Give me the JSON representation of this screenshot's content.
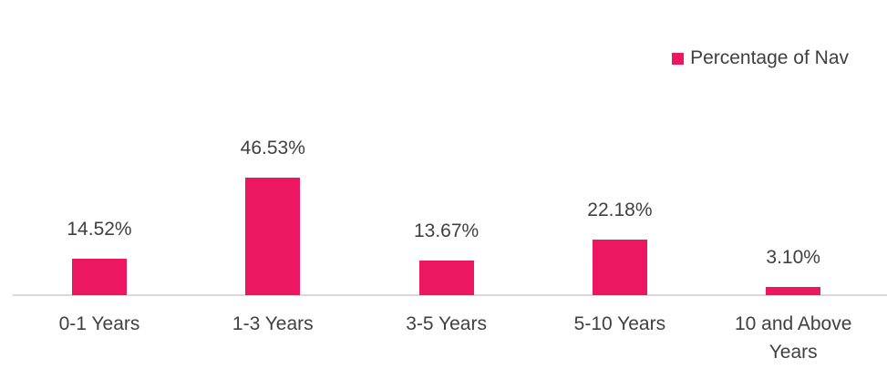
{
  "chart_data": {
    "type": "bar",
    "categories": [
      "0-1 Years",
      "1-3 Years",
      "3-5 Years",
      "5-10 Years",
      "10 and Above Years"
    ],
    "series": [
      {
        "name": "Percentage of Nav",
        "color": "#ed1660",
        "values": [
          14.52,
          46.53,
          13.67,
          22.18,
          3.1
        ],
        "value_labels": [
          "14.52%",
          "46.53%",
          "13.67%",
          "22.18%",
          "3.10%"
        ]
      }
    ],
    "legend": "top-right"
  }
}
